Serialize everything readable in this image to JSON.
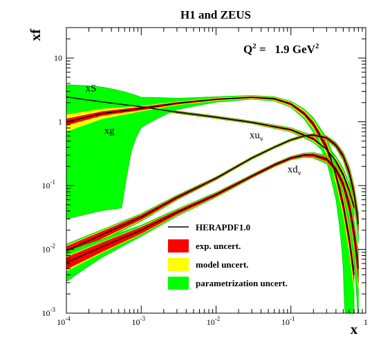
{
  "chart_data": {
    "type": "line",
    "title": "H1 and ZEUS",
    "annotation": {
      "prefix": "Q",
      "prefix_sup": "2",
      "middle": " =   1.9 GeV",
      "middle_sup": "2"
    },
    "xlabel": "x",
    "ylabel": "xf",
    "x_scale": "log",
    "y_scale": "log",
    "xlim": [
      0.0001,
      1
    ],
    "ylim": [
      0.001,
      30
    ],
    "x_ticks": [
      {
        "value": 0.0001,
        "base": "10",
        "exp": "-4"
      },
      {
        "value": 0.001,
        "base": "10",
        "exp": "-3"
      },
      {
        "value": 0.01,
        "base": "10",
        "exp": "-2"
      },
      {
        "value": 0.1,
        "base": "10",
        "exp": "-1"
      },
      {
        "value": 1,
        "base": "1",
        "exp": ""
      }
    ],
    "y_ticks": [
      {
        "value": 0.001,
        "base": "10",
        "exp": "-3"
      },
      {
        "value": 0.01,
        "base": "10",
        "exp": "-2"
      },
      {
        "value": 0.1,
        "base": "10",
        "exp": "-1"
      },
      {
        "value": 1,
        "base": "1",
        "exp": ""
      },
      {
        "value": 10,
        "base": "10",
        "exp": ""
      }
    ],
    "colors": {
      "central": "#000000",
      "exp": "#ff0000",
      "model": "#ffff00",
      "param": "#00ff00"
    },
    "legend": {
      "placement": "bottom-center",
      "entries": [
        {
          "key": "central",
          "label": "HERAPDF1.0"
        },
        {
          "key": "exp",
          "label": "exp. uncert."
        },
        {
          "key": "model",
          "label": "model uncert."
        },
        {
          "key": "param",
          "label": "parametrization uncert."
        }
      ]
    },
    "series": [
      {
        "name": "xS",
        "label_main": "xS",
        "label_sub": "",
        "label_at": {
          "x": 0.00018,
          "y": 3.0
        },
        "x": [
          0.0001,
          0.0003,
          0.001,
          0.003,
          0.01,
          0.03,
          0.1,
          0.2,
          0.3,
          0.4,
          0.5,
          0.6,
          0.7
        ],
        "y": [
          2.45,
          2.05,
          1.72,
          1.42,
          1.18,
          0.98,
          0.75,
          0.54,
          0.37,
          0.24,
          0.15,
          0.085,
          0.045
        ],
        "exp": [
          0.02,
          0.02,
          0.02,
          0.03,
          0.03,
          0.03,
          0.04,
          0.05,
          0.06,
          0.07,
          0.08,
          0.09,
          0.1
        ],
        "model": [
          0.12,
          0.08,
          0.05,
          0.04,
          0.04,
          0.04,
          0.06,
          0.08,
          0.1,
          0.12,
          0.14,
          0.16,
          0.18
        ],
        "param": [
          0.15,
          0.1,
          0.06,
          0.05,
          0.05,
          0.05,
          0.08,
          0.12,
          0.16,
          0.2,
          0.25,
          0.3,
          0.35
        ]
      },
      {
        "name": "xg",
        "label_main": "xg",
        "label_sub": "",
        "label_at": {
          "x": 0.00032,
          "y": 0.65
        },
        "x": [
          0.0001,
          0.0003,
          0.001,
          0.003,
          0.01,
          0.03,
          0.06,
          0.1,
          0.15,
          0.2,
          0.3,
          0.4,
          0.5,
          0.6,
          0.7
        ],
        "y": [
          1.0,
          1.35,
          1.62,
          1.95,
          2.25,
          2.42,
          2.3,
          1.9,
          1.35,
          0.92,
          0.4,
          0.15,
          0.05,
          0.015,
          0.004
        ],
        "exp": [
          0.12,
          0.08,
          0.06,
          0.04,
          0.03,
          0.03,
          0.04,
          0.05,
          0.07,
          0.1,
          0.14,
          0.18,
          0.22,
          0.26,
          0.3
        ],
        "model": [
          0.3,
          0.18,
          0.1,
          0.06,
          0.05,
          0.05,
          0.06,
          0.08,
          0.12,
          0.16,
          0.22,
          0.28,
          0.34,
          0.4,
          0.46
        ],
        "param": [
          2.8,
          1.6,
          0.5,
          0.2,
          0.1,
          0.07,
          0.08,
          0.11,
          0.18,
          0.26,
          0.4,
          0.6,
          0.9,
          1.3,
          1.8
        ]
      },
      {
        "name": "xuv",
        "label_main": "xu",
        "label_sub": "v",
        "label_at": {
          "x": 0.028,
          "y": 0.55
        },
        "x": [
          0.0001,
          0.0003,
          0.001,
          0.003,
          0.01,
          0.03,
          0.06,
          0.1,
          0.15,
          0.2,
          0.3,
          0.4,
          0.5,
          0.6,
          0.7,
          0.8
        ],
        "y": [
          0.0095,
          0.017,
          0.032,
          0.065,
          0.13,
          0.27,
          0.4,
          0.52,
          0.6,
          0.62,
          0.56,
          0.43,
          0.29,
          0.165,
          0.075,
          0.025
        ],
        "exp": [
          0.18,
          0.13,
          0.09,
          0.06,
          0.04,
          0.03,
          0.03,
          0.03,
          0.03,
          0.04,
          0.05,
          0.07,
          0.1,
          0.14,
          0.2,
          0.3
        ],
        "model": [
          0.22,
          0.16,
          0.11,
          0.07,
          0.05,
          0.04,
          0.04,
          0.04,
          0.04,
          0.05,
          0.06,
          0.08,
          0.12,
          0.17,
          0.25,
          0.35
        ],
        "param": [
          0.28,
          0.2,
          0.14,
          0.09,
          0.06,
          0.05,
          0.05,
          0.05,
          0.05,
          0.06,
          0.08,
          0.11,
          0.16,
          0.24,
          0.35,
          0.5
        ]
      },
      {
        "name": "xdv",
        "label_main": "xd",
        "label_sub": "v",
        "label_at": {
          "x": 0.09,
          "y": 0.16
        },
        "x": [
          0.0001,
          0.0003,
          0.001,
          0.003,
          0.01,
          0.03,
          0.06,
          0.1,
          0.15,
          0.2,
          0.3,
          0.4,
          0.5,
          0.6,
          0.7,
          0.8
        ],
        "y": [
          0.0062,
          0.011,
          0.02,
          0.038,
          0.072,
          0.14,
          0.21,
          0.27,
          0.3,
          0.3,
          0.26,
          0.18,
          0.105,
          0.05,
          0.018,
          0.005
        ],
        "exp": [
          0.22,
          0.17,
          0.12,
          0.08,
          0.06,
          0.05,
          0.05,
          0.05,
          0.05,
          0.06,
          0.08,
          0.11,
          0.16,
          0.24,
          0.34,
          0.45
        ],
        "model": [
          0.27,
          0.2,
          0.14,
          0.1,
          0.07,
          0.06,
          0.06,
          0.06,
          0.06,
          0.07,
          0.1,
          0.14,
          0.2,
          0.3,
          0.42,
          0.55
        ],
        "param": [
          0.5,
          0.32,
          0.2,
          0.13,
          0.09,
          0.07,
          0.07,
          0.07,
          0.08,
          0.1,
          0.15,
          0.22,
          0.32,
          0.46,
          0.65,
          0.9
        ]
      }
    ]
  }
}
